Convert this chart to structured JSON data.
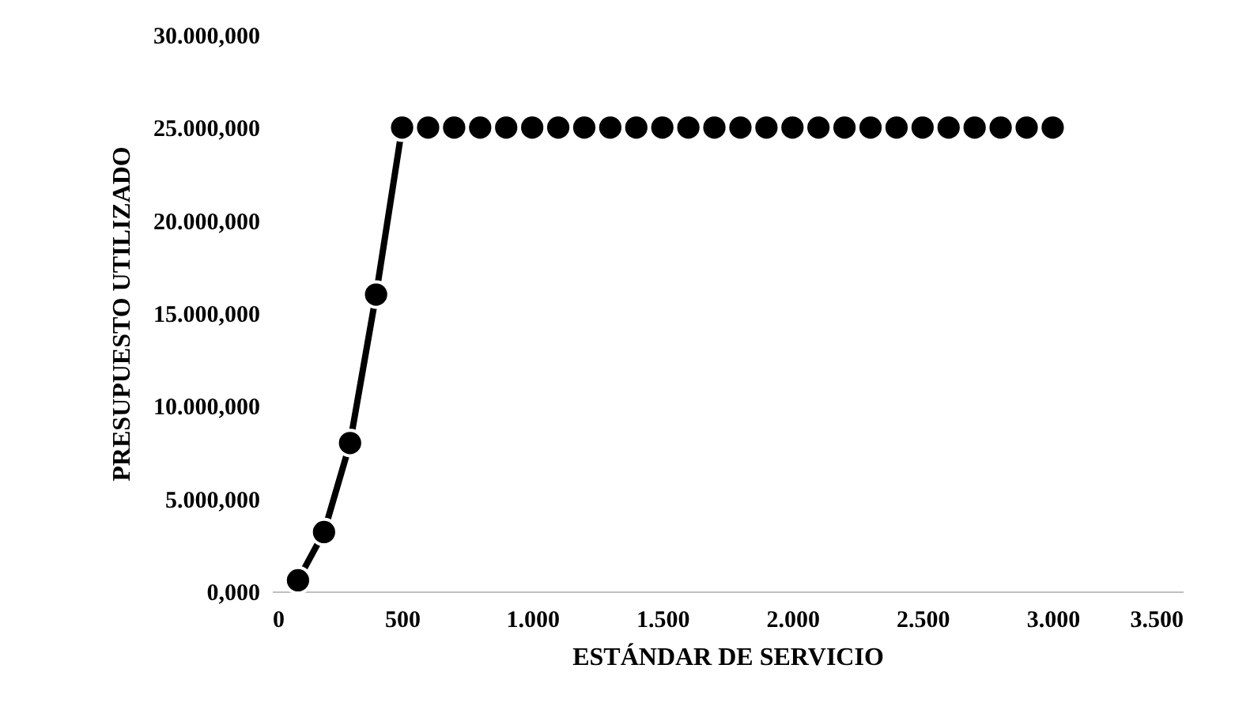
{
  "chart_data": {
    "type": "line",
    "xlabel": "ESTÁNDAR DE SERVICIO",
    "ylabel": "PRESUPUESTO UTILIZADO",
    "x": [
      100,
      200,
      300,
      400,
      500,
      600,
      700,
      800,
      900,
      1000,
      1100,
      1200,
      1300,
      1400,
      1500,
      1600,
      1700,
      1800,
      1900,
      2000,
      2100,
      2200,
      2300,
      2400,
      2500,
      2600,
      2700,
      2800,
      2900,
      3000
    ],
    "series": [
      {
        "color": "#000000",
        "values": [
          600,
          3200,
          8000,
          16000,
          25000,
          25000,
          25000,
          25000,
          25000,
          25000,
          25000,
          25000,
          25000,
          25000,
          25000,
          25000,
          25000,
          25000,
          25000,
          25000,
          25000,
          25000,
          25000,
          25000,
          25000,
          25000,
          25000,
          25000,
          25000,
          25000
        ]
      }
    ],
    "xlim": [
      0,
      3500
    ],
    "xticks": [
      0,
      500,
      {
        "value": 1000,
        "label": "1.000"
      },
      {
        "value": 1500,
        "label": "1.500"
      },
      {
        "value": 2000,
        "label": "2.000"
      },
      {
        "value": 2500,
        "label": "2.500"
      },
      {
        "value": 3000,
        "label": "3.000"
      },
      {
        "value": 3500,
        "label": "3.500"
      }
    ],
    "ylim": [
      0,
      30000
    ],
    "yticks": [
      {
        "value": 0,
        "label": "0,000"
      },
      {
        "value": 5000,
        "label": "5.000,000"
      },
      {
        "value": 10000,
        "label": "10.000,000"
      },
      {
        "value": 15000,
        "label": "15.000,000"
      },
      {
        "value": 20000,
        "label": "20.000,000"
      },
      {
        "value": 25000,
        "label": "25.000,000"
      },
      {
        "value": 30000,
        "label": "30.000,000"
      }
    ],
    "grid": false,
    "marker": "circle",
    "line_style": "solid"
  }
}
